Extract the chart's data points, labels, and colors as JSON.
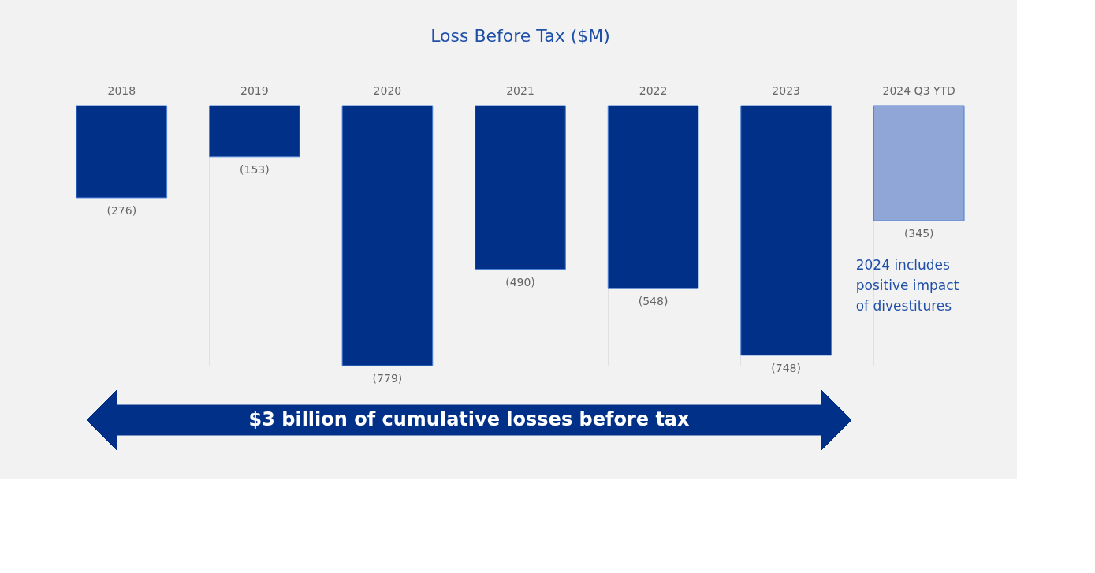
{
  "chart_data": {
    "type": "bar",
    "title": "Loss Before Tax ($M)",
    "categories": [
      "2018",
      "2019",
      "2020",
      "2021",
      "2022",
      "2023",
      "2024 Q3 YTD"
    ],
    "values": [
      -276,
      -153,
      -779,
      -490,
      -548,
      -748,
      -345
    ],
    "colors": [
      "#003087",
      "#003087",
      "#003087",
      "#003087",
      "#003087",
      "#003087",
      "#8fa6d6"
    ],
    "value_labels": [
      "(276)",
      "(153)",
      "(779)",
      "(490)",
      "(548)",
      "(748)",
      "(345)"
    ],
    "annotations": [
      "2024 includes positive impact of divestitures",
      "$3 billion of cumulative losses before tax"
    ],
    "grid": "x"
  }
}
